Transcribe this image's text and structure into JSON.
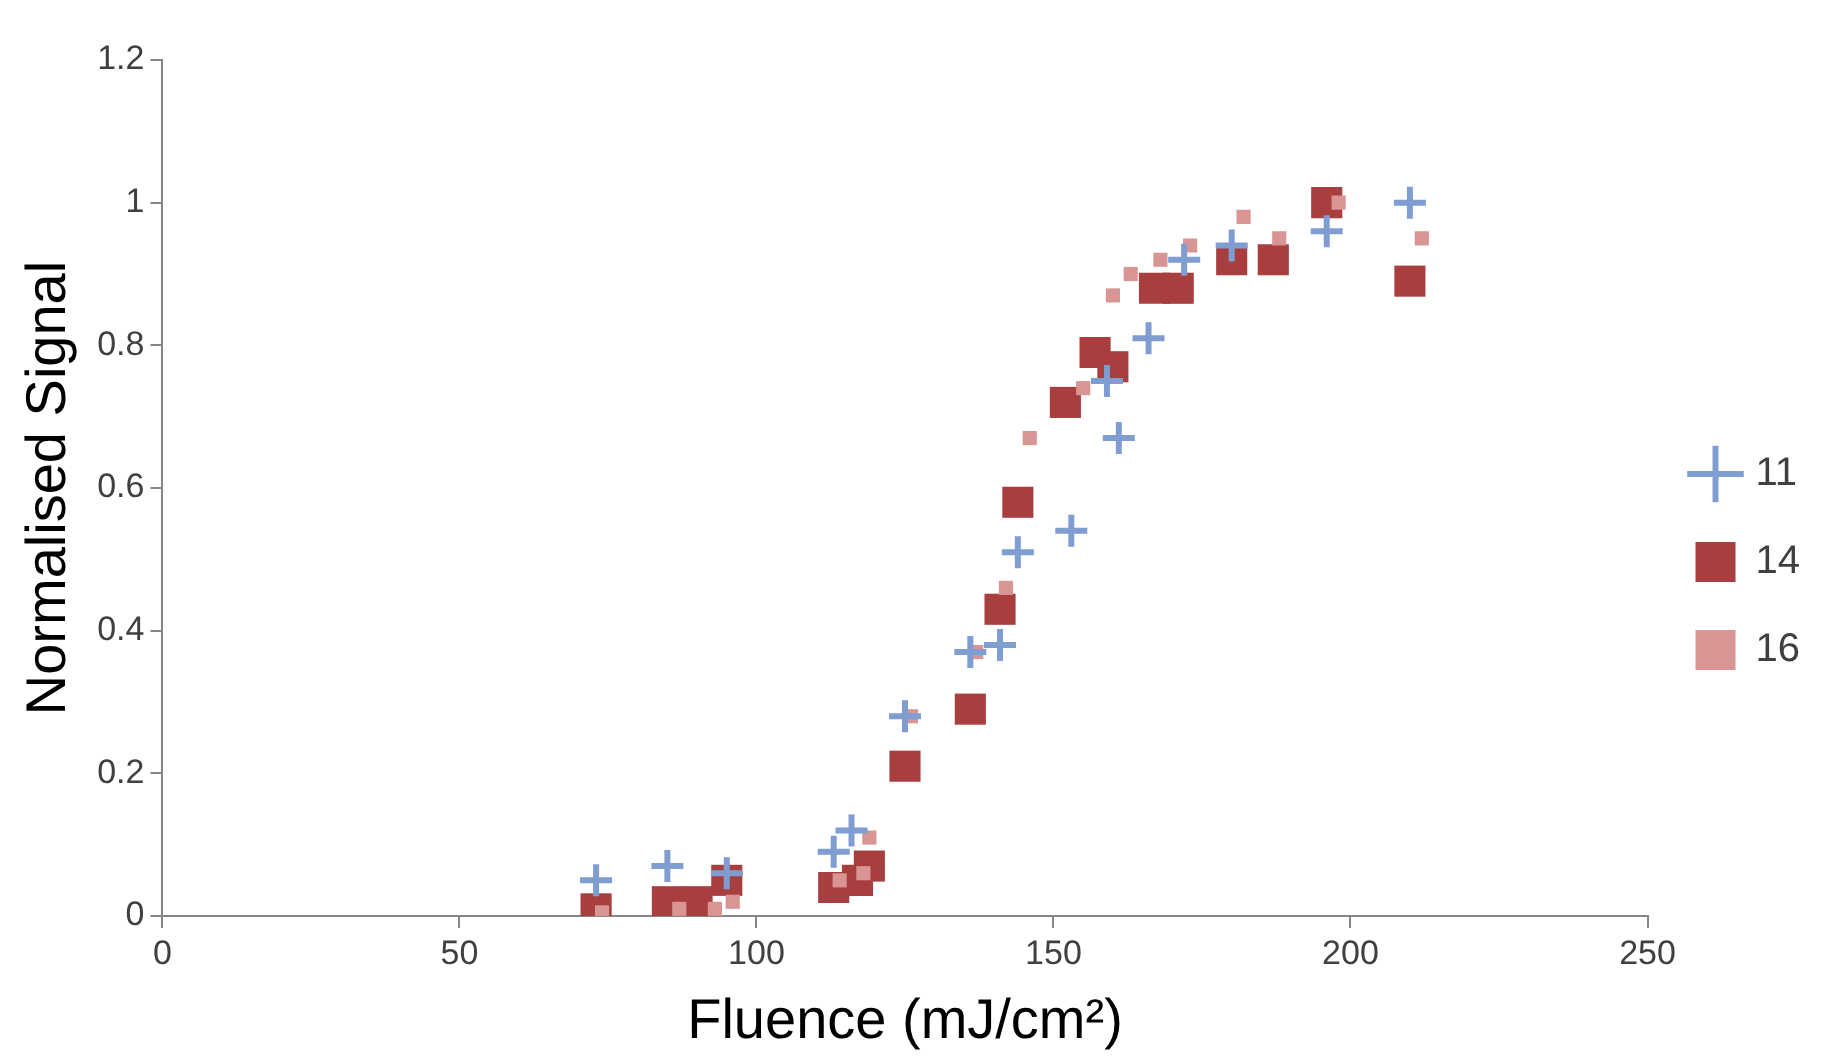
{
  "chart_data": {
    "type": "scatter",
    "xlabel": "Fluence (mJ/cm²)",
    "ylabel": "Normalised Signal",
    "xlim": [
      0,
      250
    ],
    "xticks": [
      0,
      50,
      100,
      150,
      200,
      250
    ],
    "ylim": [
      0,
      1.2
    ],
    "yticks": [
      0,
      0.2,
      0.4,
      0.6,
      0.8,
      1,
      1.2
    ],
    "grid": false,
    "legend": "right",
    "series": [
      {
        "name": "11",
        "color": "#7f9dd0",
        "marker": "cross",
        "x": [
          73,
          85,
          95,
          113,
          116,
          125,
          136,
          141,
          144,
          153,
          159,
          161,
          166,
          172,
          180,
          196,
          210
        ],
        "values": [
          0.05,
          0.07,
          0.06,
          0.09,
          0.12,
          0.28,
          0.37,
          0.38,
          0.51,
          0.54,
          0.75,
          0.67,
          0.81,
          0.92,
          0.94,
          0.96,
          1.0
        ]
      },
      {
        "name": "14",
        "color": "#a83f3e",
        "marker": "square",
        "x": [
          73,
          85,
          90,
          95,
          113,
          117,
          119,
          125,
          136,
          141,
          144,
          152,
          157,
          160,
          167,
          171,
          180,
          187,
          196,
          210
        ],
        "values": [
          0.01,
          0.02,
          0.02,
          0.05,
          0.04,
          0.05,
          0.07,
          0.21,
          0.29,
          0.43,
          0.58,
          0.72,
          0.79,
          0.77,
          0.88,
          0.88,
          0.92,
          0.92,
          1.0,
          0.89
        ]
      },
      {
        "name": "16",
        "color": "#d99594",
        "marker": "square",
        "x": [
          74,
          87,
          93,
          96,
          114,
          118,
          119,
          126,
          137,
          142,
          146,
          155,
          160,
          163,
          168,
          173,
          182,
          188,
          198,
          212
        ],
        "values": [
          0.005,
          0.01,
          0.01,
          0.02,
          0.05,
          0.06,
          0.11,
          0.28,
          0.37,
          0.46,
          0.67,
          0.74,
          0.87,
          0.9,
          0.92,
          0.94,
          0.98,
          0.95,
          1.0,
          0.95
        ]
      }
    ]
  }
}
